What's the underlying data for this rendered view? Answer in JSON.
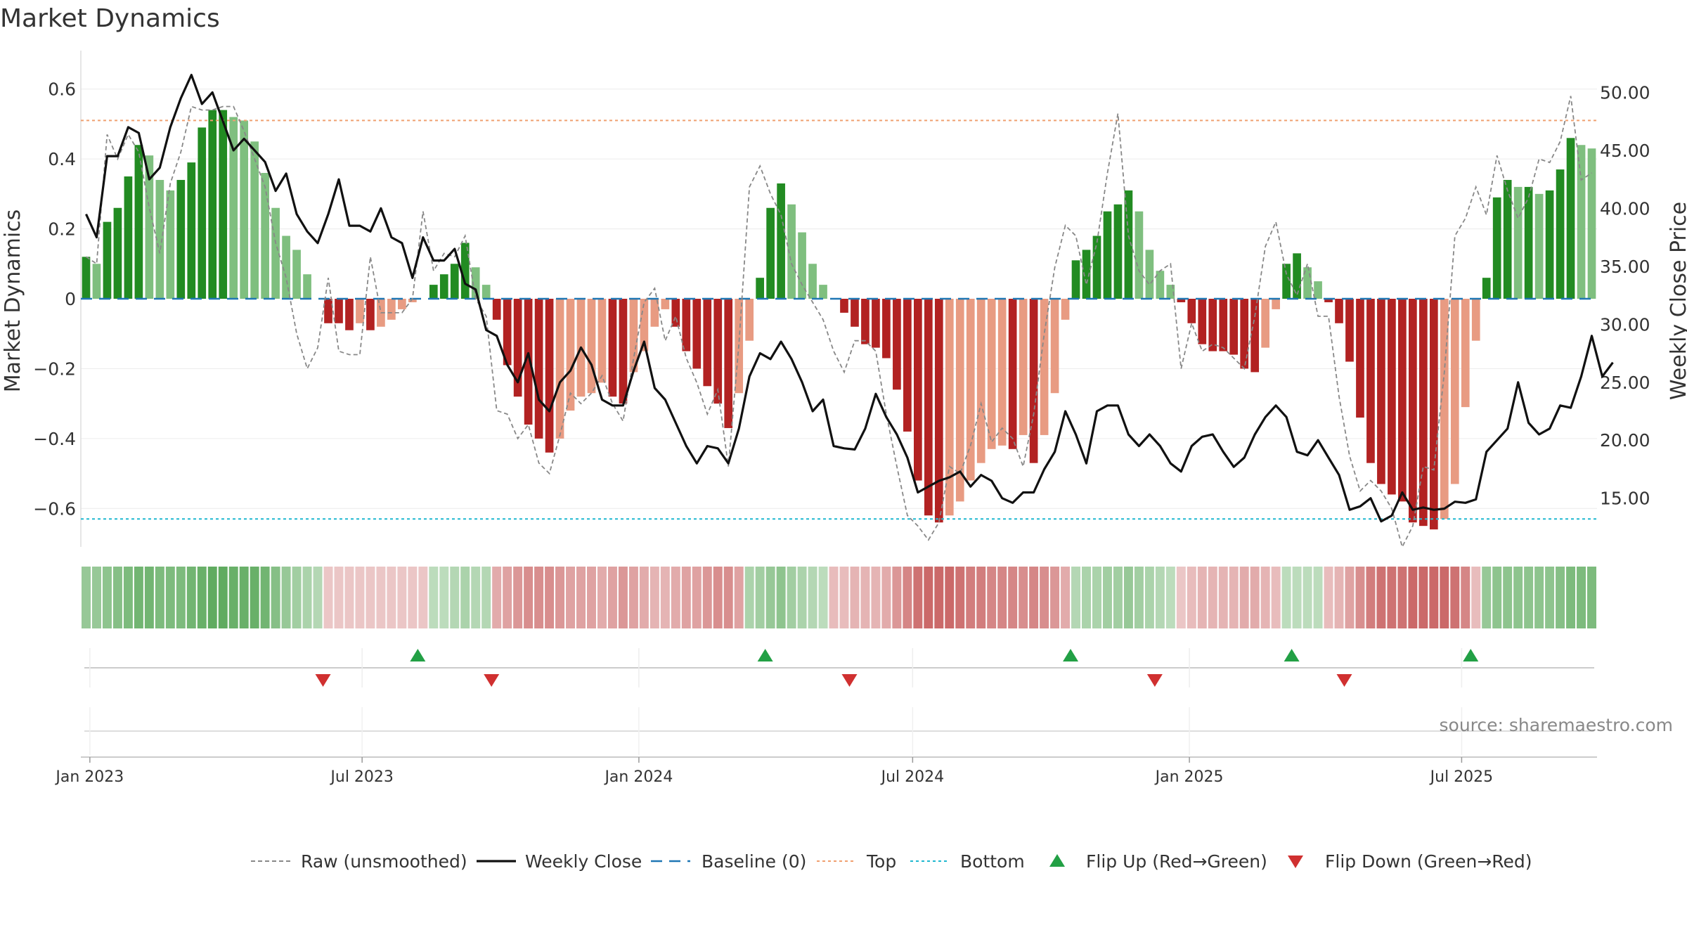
{
  "chart_data": {
    "type": "bar",
    "title": "Market Dynamics",
    "ylabel": "Market Dynamics",
    "y2label": "Weekly Close Price",
    "ylim": [
      -0.71,
      0.71
    ],
    "y2lim": [
      10.8,
      53.6
    ],
    "yticks": [
      {
        "v": 0.6,
        "label": "0.6"
      },
      {
        "v": 0.4,
        "label": "0.4"
      },
      {
        "v": 0.2,
        "label": "0.2"
      },
      {
        "v": 0,
        "label": "0"
      },
      {
        "v": -0.2,
        "label": "−0.2"
      },
      {
        "v": -0.4,
        "label": "−0.4"
      },
      {
        "v": -0.6,
        "label": "−0.6"
      }
    ],
    "y2ticks": [
      {
        "v": 50,
        "label": "50.00"
      },
      {
        "v": 45,
        "label": "45.00"
      },
      {
        "v": 40,
        "label": "40.00"
      },
      {
        "v": 35,
        "label": "35.00"
      },
      {
        "v": 30,
        "label": "30.00"
      },
      {
        "v": 25,
        "label": "25.00"
      },
      {
        "v": 20,
        "label": "20.00"
      },
      {
        "v": 15,
        "label": "15.00"
      }
    ],
    "x_start": "2022-12-26",
    "x_end": "2025-09-29",
    "xticks": [
      {
        "date": "2023-01-01",
        "label": "Jan 2023"
      },
      {
        "date": "2023-07-01",
        "label": "Jul 2023"
      },
      {
        "date": "2024-01-01",
        "label": "Jan 2024"
      },
      {
        "date": "2024-07-01",
        "label": "Jul 2024"
      },
      {
        "date": "2025-01-01",
        "label": "Jan 2025"
      },
      {
        "date": "2025-07-01",
        "label": "Jul 2025"
      }
    ],
    "top_level": 0.51,
    "bottom_level": -0.63,
    "baseline": 0,
    "smoothed": [
      0.12,
      0.1,
      0.22,
      0.26,
      0.35,
      0.44,
      0.41,
      0.34,
      0.31,
      0.34,
      0.39,
      0.49,
      0.54,
      0.54,
      0.52,
      0.51,
      0.45,
      0.36,
      0.26,
      0.18,
      0.14,
      0.07,
      0.0,
      -0.07,
      -0.07,
      -0.09,
      -0.07,
      -0.09,
      -0.08,
      -0.06,
      -0.03,
      -0.01,
      0.0,
      0.04,
      0.07,
      0.1,
      0.16,
      0.09,
      0.04,
      -0.06,
      -0.19,
      -0.28,
      -0.36,
      -0.4,
      -0.44,
      -0.4,
      -0.32,
      -0.28,
      -0.27,
      -0.24,
      -0.28,
      -0.3,
      -0.21,
      -0.15,
      -0.08,
      -0.03,
      -0.08,
      -0.15,
      -0.2,
      -0.25,
      -0.3,
      -0.37,
      -0.27,
      -0.12,
      0.06,
      0.26,
      0.33,
      0.27,
      0.19,
      0.1,
      0.04,
      0.0,
      -0.04,
      -0.08,
      -0.13,
      -0.14,
      -0.17,
      -0.26,
      -0.38,
      -0.52,
      -0.62,
      -0.64,
      -0.62,
      -0.58,
      -0.52,
      -0.47,
      -0.43,
      -0.42,
      -0.43,
      -0.39,
      -0.47,
      -0.39,
      -0.27,
      -0.06,
      0.11,
      0.14,
      0.18,
      0.25,
      0.27,
      0.31,
      0.25,
      0.14,
      0.08,
      0.04,
      -0.01,
      -0.07,
      -0.13,
      -0.15,
      -0.15,
      -0.16,
      -0.2,
      -0.21,
      -0.14,
      -0.03,
      0.1,
      0.13,
      0.09,
      0.05,
      -0.01,
      -0.07,
      -0.18,
      -0.34,
      -0.47,
      -0.53,
      -0.56,
      -0.58,
      -0.64,
      -0.65,
      -0.66,
      -0.63,
      -0.53,
      -0.31,
      -0.12,
      0.06,
      0.29,
      0.34,
      0.32,
      0.32,
      0.3,
      0.31,
      0.37,
      0.46,
      0.44,
      0.43
    ],
    "raw": [
      0.12,
      0.1,
      0.47,
      0.4,
      0.47,
      0.42,
      0.26,
      0.13,
      0.33,
      0.42,
      0.55,
      0.54,
      0.54,
      0.55,
      0.55,
      0.48,
      0.4,
      0.32,
      0.16,
      0.06,
      -0.1,
      -0.2,
      -0.14,
      0.06,
      -0.15,
      -0.16,
      -0.16,
      0.12,
      -0.04,
      -0.04,
      -0.04,
      0.0,
      0.25,
      0.08,
      0.13,
      0.12,
      0.18,
      0.0,
      -0.05,
      -0.32,
      -0.33,
      -0.4,
      -0.36,
      -0.47,
      -0.5,
      -0.39,
      -0.27,
      -0.3,
      -0.27,
      -0.22,
      -0.3,
      -0.35,
      -0.17,
      -0.01,
      0.03,
      -0.12,
      -0.05,
      -0.17,
      -0.24,
      -0.33,
      -0.26,
      -0.48,
      -0.13,
      0.32,
      0.38,
      0.3,
      0.24,
      0.1,
      0.04,
      -0.01,
      -0.06,
      -0.15,
      -0.21,
      -0.12,
      -0.12,
      -0.15,
      -0.33,
      -0.48,
      -0.62,
      -0.65,
      -0.69,
      -0.64,
      -0.48,
      -0.5,
      -0.42,
      -0.3,
      -0.41,
      -0.37,
      -0.4,
      -0.48,
      -0.33,
      -0.1,
      0.09,
      0.21,
      0.18,
      0.04,
      0.16,
      0.36,
      0.53,
      0.18,
      0.08,
      0.04,
      0.08,
      0.1,
      -0.2,
      -0.07,
      -0.15,
      -0.13,
      -0.14,
      -0.17,
      -0.2,
      -0.05,
      0.15,
      0.22,
      0.07,
      0.01,
      0.1,
      -0.05,
      -0.05,
      -0.28,
      -0.45,
      -0.55,
      -0.52,
      -0.55,
      -0.6,
      -0.71,
      -0.65,
      -0.48,
      -0.49,
      -0.21,
      0.18,
      0.23,
      0.32,
      0.24,
      0.41,
      0.31,
      0.23,
      0.29,
      0.4,
      0.39,
      0.45,
      0.58,
      0.34,
      0.36
    ],
    "close": [
      39.5,
      37.5,
      44.5,
      44.5,
      47.0,
      46.5,
      42.5,
      43.5,
      47.0,
      49.5,
      51.5,
      49.0,
      50.0,
      47.5,
      45.0,
      46.0,
      45.0,
      44.0,
      41.5,
      43.0,
      39.5,
      38.0,
      37.0,
      39.5,
      42.5,
      38.5,
      38.5,
      38.0,
      40.0,
      37.5,
      37.0,
      34.0,
      37.5,
      35.5,
      35.5,
      36.5,
      33.5,
      33.0,
      29.5,
      29.0,
      26.5,
      25.0,
      27.5,
      23.5,
      22.5,
      25.0,
      26.0,
      28.0,
      26.5,
      23.5,
      23.0,
      23.0,
      26.0,
      28.5,
      24.5,
      23.5,
      21.5,
      19.5,
      18.0,
      19.5,
      19.3,
      18.0,
      21.0,
      25.5,
      27.5,
      27.0,
      28.5,
      27.0,
      25.0,
      22.5,
      23.5,
      19.5,
      19.3,
      19.2,
      21.0,
      24.0,
      22.0,
      20.5,
      18.5,
      15.5,
      16.0,
      16.5,
      16.8,
      17.3,
      16.0,
      17.0,
      16.5,
      15.0,
      14.6,
      15.5,
      15.5,
      17.5,
      19.0,
      22.5,
      20.5,
      18.0,
      22.5,
      23.0,
      23.0,
      20.5,
      19.5,
      20.5,
      19.5,
      18.0,
      17.3,
      19.5,
      20.3,
      20.5,
      19.0,
      17.7,
      18.5,
      20.5,
      22.0,
      23.0,
      22.0,
      19.0,
      18.7,
      20.0,
      18.5,
      17.0,
      14.0,
      14.3,
      15.0,
      13.0,
      13.5,
      15.5,
      14.0,
      14.2,
      14.0,
      14.1,
      14.7,
      14.6,
      14.9,
      19.0,
      20.0,
      21.0,
      25.0,
      21.5,
      20.5,
      21.0,
      23.0,
      22.8,
      25.5,
      29.0,
      25.5,
      26.7
    ],
    "regime_intensity": [
      0.55,
      0.55,
      0.6,
      0.65,
      0.7,
      0.75,
      0.75,
      0.7,
      0.7,
      0.7,
      0.75,
      0.8,
      0.85,
      0.85,
      0.8,
      0.8,
      0.8,
      0.75,
      0.65,
      0.55,
      0.5,
      0.45,
      0.4,
      -0.3,
      -0.3,
      -0.3,
      -0.3,
      -0.3,
      -0.3,
      -0.3,
      -0.3,
      -0.3,
      -0.3,
      0.35,
      0.35,
      0.4,
      0.45,
      0.4,
      0.4,
      -0.45,
      -0.5,
      -0.55,
      -0.6,
      -0.6,
      -0.6,
      -0.55,
      -0.5,
      -0.5,
      -0.5,
      -0.45,
      -0.5,
      -0.55,
      -0.5,
      -0.45,
      -0.4,
      -0.4,
      -0.45,
      -0.5,
      -0.5,
      -0.55,
      -0.6,
      -0.6,
      -0.5,
      0.45,
      0.5,
      0.55,
      0.6,
      0.5,
      0.45,
      0.4,
      0.35,
      -0.35,
      -0.35,
      -0.4,
      -0.4,
      -0.4,
      -0.45,
      -0.55,
      -0.65,
      -0.75,
      -0.8,
      -0.8,
      -0.8,
      -0.75,
      -0.7,
      -0.7,
      -0.65,
      -0.65,
      -0.65,
      -0.6,
      -0.65,
      -0.6,
      -0.55,
      -0.45,
      0.4,
      0.45,
      0.45,
      0.5,
      0.5,
      0.55,
      0.5,
      0.45,
      0.4,
      0.35,
      -0.3,
      -0.35,
      -0.4,
      -0.4,
      -0.4,
      -0.4,
      -0.45,
      -0.45,
      -0.4,
      -0.35,
      0.35,
      0.35,
      0.35,
      0.35,
      -0.35,
      -0.4,
      -0.5,
      -0.6,
      -0.7,
      -0.75,
      -0.75,
      -0.75,
      -0.8,
      -0.8,
      -0.8,
      -0.8,
      -0.75,
      -0.65,
      -0.35,
      0.55,
      0.6,
      0.6,
      0.6,
      0.6,
      0.6,
      0.6,
      0.65,
      0.7,
      0.7,
      0.7
    ],
    "flips_up": [
      "2023-08-07",
      "2024-03-25",
      "2024-10-14",
      "2025-03-10",
      "2025-07-07"
    ],
    "flips_down": [
      "2023-06-05",
      "2023-09-25",
      "2024-05-20",
      "2024-12-09",
      "2025-04-14"
    ],
    "source": "source: sharemaestro.com",
    "legend": {
      "raw": "Raw (unsmoothed)",
      "close": "Weekly Close",
      "baseline": "Baseline (0)",
      "top": "Top",
      "bottom": "Bottom",
      "flip_up": "Flip Up (Red→Green)",
      "flip_down": "Flip Down (Green→Red)"
    },
    "colors": {
      "bull_strong": "#228b22",
      "bull_weak": "#7fbf7f",
      "bear_strong": "#b22222",
      "bear_weak": "#e89b82",
      "raw": "#888888",
      "close": "#111111",
      "baseline": "#1f77b4",
      "top": "#f0a070",
      "bottom": "#20b8d0",
      "flip_up": "#22a045",
      "flip_down": "#d03030"
    }
  }
}
